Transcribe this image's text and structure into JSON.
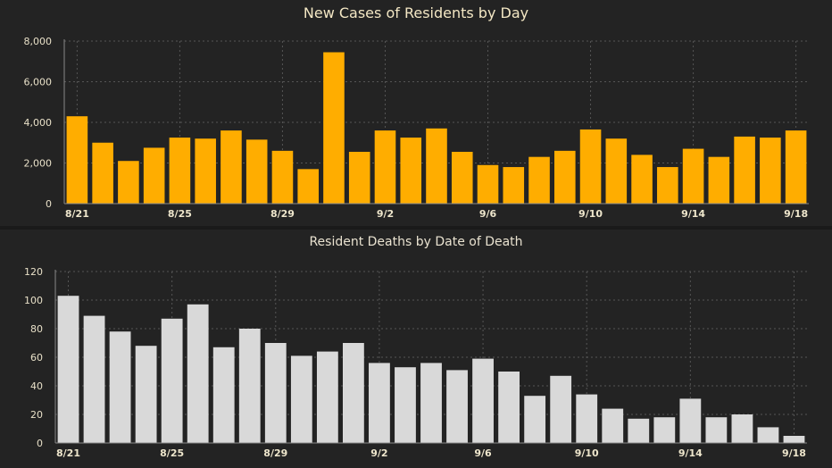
{
  "chart_data": [
    {
      "type": "bar",
      "title": "New Cases of Residents by Day",
      "xlabel": "",
      "ylabel": "",
      "categories": [
        "8/21",
        "8/22",
        "8/23",
        "8/24",
        "8/25",
        "8/26",
        "8/27",
        "8/28",
        "8/29",
        "8/30",
        "8/31",
        "9/1",
        "9/2",
        "9/3",
        "9/4",
        "9/5",
        "9/6",
        "9/7",
        "9/8",
        "9/9",
        "9/10",
        "9/11",
        "9/12",
        "9/13",
        "9/14",
        "9/15",
        "9/16",
        "9/17",
        "9/18"
      ],
      "x_tick_labels": [
        "8/21",
        "8/25",
        "8/29",
        "9/2",
        "9/6",
        "9/10",
        "9/14",
        "9/18"
      ],
      "values": [
        4300,
        3000,
        2100,
        2750,
        3250,
        3200,
        3600,
        3150,
        2600,
        1700,
        7450,
        2550,
        3600,
        3250,
        3700,
        2550,
        1900,
        1800,
        2300,
        2600,
        3650,
        3200,
        2400,
        1800,
        2700,
        2300,
        3300,
        3250,
        3600
      ],
      "y_ticks": [
        "0",
        "2,000",
        "4,000",
        "6,000",
        "8,000"
      ],
      "ylim": [
        0,
        8000
      ],
      "grid": "dotted vertical and horizontal",
      "bar_color": "#ffad00"
    },
    {
      "type": "bar",
      "title": "Resident Deaths by Date of Death",
      "xlabel": "",
      "ylabel": "",
      "categories": [
        "8/21",
        "8/22",
        "8/23",
        "8/24",
        "8/25",
        "8/26",
        "8/27",
        "8/28",
        "8/29",
        "8/30",
        "8/31",
        "9/1",
        "9/2",
        "9/3",
        "9/4",
        "9/5",
        "9/6",
        "9/7",
        "9/8",
        "9/9",
        "9/10",
        "9/11",
        "9/12",
        "9/13",
        "9/14",
        "9/15",
        "9/16",
        "9/17",
        "9/18"
      ],
      "x_tick_labels": [
        "8/21",
        "8/25",
        "8/29",
        "9/2",
        "9/6",
        "9/10",
        "9/14",
        "9/18"
      ],
      "values": [
        103,
        89,
        78,
        68,
        87,
        97,
        67,
        80,
        70,
        61,
        64,
        70,
        56,
        53,
        56,
        51,
        59,
        50,
        33,
        47,
        34,
        24,
        17,
        18,
        31,
        18,
        20,
        11,
        5
      ],
      "y_ticks": [
        "0",
        "20",
        "40",
        "60",
        "80",
        "100",
        "120"
      ],
      "ylim": [
        0,
        120
      ],
      "grid": "dotted vertical and horizontal",
      "bar_color": "#d9d9d9"
    }
  ]
}
